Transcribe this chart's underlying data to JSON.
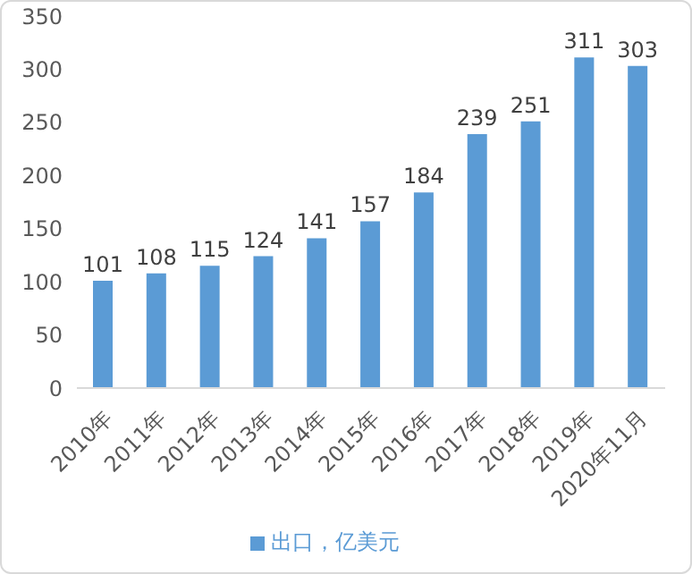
{
  "chart_data": {
    "type": "bar",
    "categories": [
      "2010年",
      "2011年",
      "2012年",
      "2013年",
      "2014年",
      "2015年",
      "2016年",
      "2017年",
      "2018年",
      "2019年",
      "2020年11月"
    ],
    "series": [
      {
        "name": "出口，亿美元",
        "color": "#5b9bd5",
        "values": [
          101,
          108,
          115,
          124,
          141,
          157,
          184,
          239,
          251,
          311,
          303
        ]
      }
    ],
    "ylim": [
      0,
      350
    ],
    "yticks": [
      0,
      50,
      100,
      150,
      200,
      250,
      300,
      350
    ],
    "grid": false,
    "legend": "bottom",
    "data_labels": true
  }
}
